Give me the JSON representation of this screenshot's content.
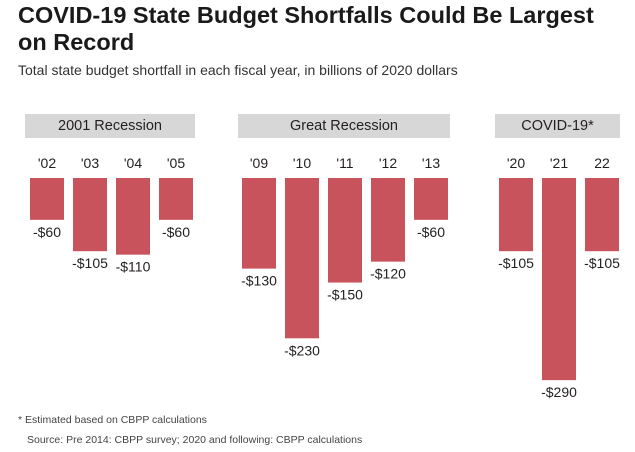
{
  "header": {
    "title": "COVID-19 State Budget Shortfalls Could Be Largest on Record",
    "subtitle": "Total state budget shortfall in each fiscal year, in billions of 2020 dollars"
  },
  "footer": {
    "footnote": "* Estimated based on CBPP calculations",
    "source": "Source: Pre 2014: CBPP survey;  2020 and following: CBPP calculations"
  },
  "colors": {
    "bar": "#c9535c",
    "header_bg": "#d7d7d7",
    "text": "#231f20"
  },
  "chart_data": {
    "type": "bar",
    "title": "COVID-19 State Budget Shortfalls Could Be Largest on Record",
    "subtitle": "Total state budget shortfall in each fiscal year, in billions of 2020 dollars",
    "unit": "billions of 2020 dollars",
    "ylim": [
      -300,
      0
    ],
    "panels": [
      {
        "name": "2001 Recession",
        "categories": [
          "'02",
          "'03",
          "'04",
          "'05"
        ],
        "values": [
          -60,
          -105,
          -110,
          -60
        ],
        "labels": [
          "-$60",
          "-$105",
          "-$110",
          "-$60"
        ]
      },
      {
        "name": "Great Recession",
        "categories": [
          "'09",
          "'10",
          "'11",
          "'12",
          "'13"
        ],
        "values": [
          -130,
          -230,
          -150,
          -120,
          -60
        ],
        "labels": [
          "-$130",
          "-$230",
          "-$150",
          "-$120",
          "-$60"
        ]
      },
      {
        "name": "COVID-19*",
        "categories": [
          "'20",
          "'21",
          "22"
        ],
        "values": [
          -105,
          -290,
          -105
        ],
        "labels": [
          "-$105",
          "-$290",
          "-$105"
        ]
      }
    ]
  }
}
